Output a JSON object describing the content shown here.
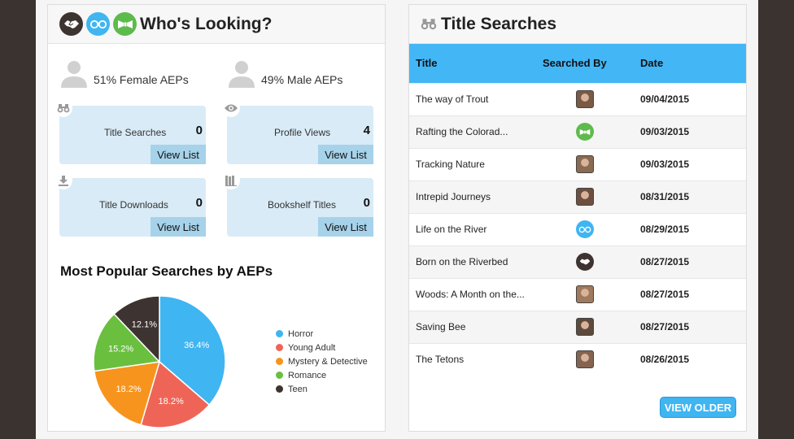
{
  "whos_looking": {
    "title": "Who's Looking?",
    "header_icons": [
      "handshake-icon",
      "glasses-icon",
      "bowtie-icon"
    ],
    "female": "51% Female AEPs",
    "male": "49% Male AEPs",
    "stats": [
      {
        "label": "Title Searches",
        "count": "0",
        "button": "View List",
        "icon": "binoculars-icon"
      },
      {
        "label": "Profile Views",
        "count": "4",
        "button": "View List",
        "icon": "eye-icon"
      },
      {
        "label": "Title Downloads",
        "count": "0",
        "button": "View List",
        "icon": "download-icon"
      },
      {
        "label": "Bookshelf Titles",
        "count": "0",
        "button": "View List",
        "icon": "books-icon"
      }
    ]
  },
  "popular": {
    "title": "Most Popular Searches by AEPs"
  },
  "chart_data": {
    "type": "pie",
    "title": "Most Popular Searches by AEPs",
    "slices": [
      {
        "label": "Horror",
        "value": 36.4,
        "text": "36.4%",
        "color": "#3fb5f2"
      },
      {
        "label": "Young Adult",
        "value": 18.2,
        "text": "18.2%",
        "color": "#ee6557"
      },
      {
        "label": "Mystery & Detective",
        "value": 18.2,
        "text": "18.2%",
        "color": "#f7941d"
      },
      {
        "label": "Romance",
        "value": 15.2,
        "text": "15.2%",
        "color": "#6bbf3f"
      },
      {
        "label": "Teen",
        "value": 12.1,
        "text": "12.1%",
        "color": "#3d3330"
      }
    ],
    "legend_position": "right"
  },
  "title_searches": {
    "title": "Title Searches",
    "columns": [
      "Title",
      "Searched By",
      "Date"
    ],
    "rows": [
      {
        "title": "The way of Trout",
        "by": "photo",
        "date": "09/04/2015"
      },
      {
        "title": "Rafting the Colorad...",
        "by": "bowtie",
        "date": "09/03/2015"
      },
      {
        "title": "Tracking Nature",
        "by": "photo",
        "date": "09/03/2015"
      },
      {
        "title": "Intrepid Journeys",
        "by": "photo",
        "date": "08/31/2015"
      },
      {
        "title": "Life on the River",
        "by": "glasses",
        "date": "08/29/2015"
      },
      {
        "title": "Born on the Riverbed",
        "by": "handshake",
        "date": "08/27/2015"
      },
      {
        "title": "Woods: A Month on the...",
        "by": "photo",
        "date": "08/27/2015"
      },
      {
        "title": "Saving Bee",
        "by": "photo",
        "date": "08/27/2015"
      },
      {
        "title": "The Tetons",
        "by": "photo",
        "date": "08/26/2015"
      }
    ],
    "view_older": "VIEW OLDER"
  }
}
